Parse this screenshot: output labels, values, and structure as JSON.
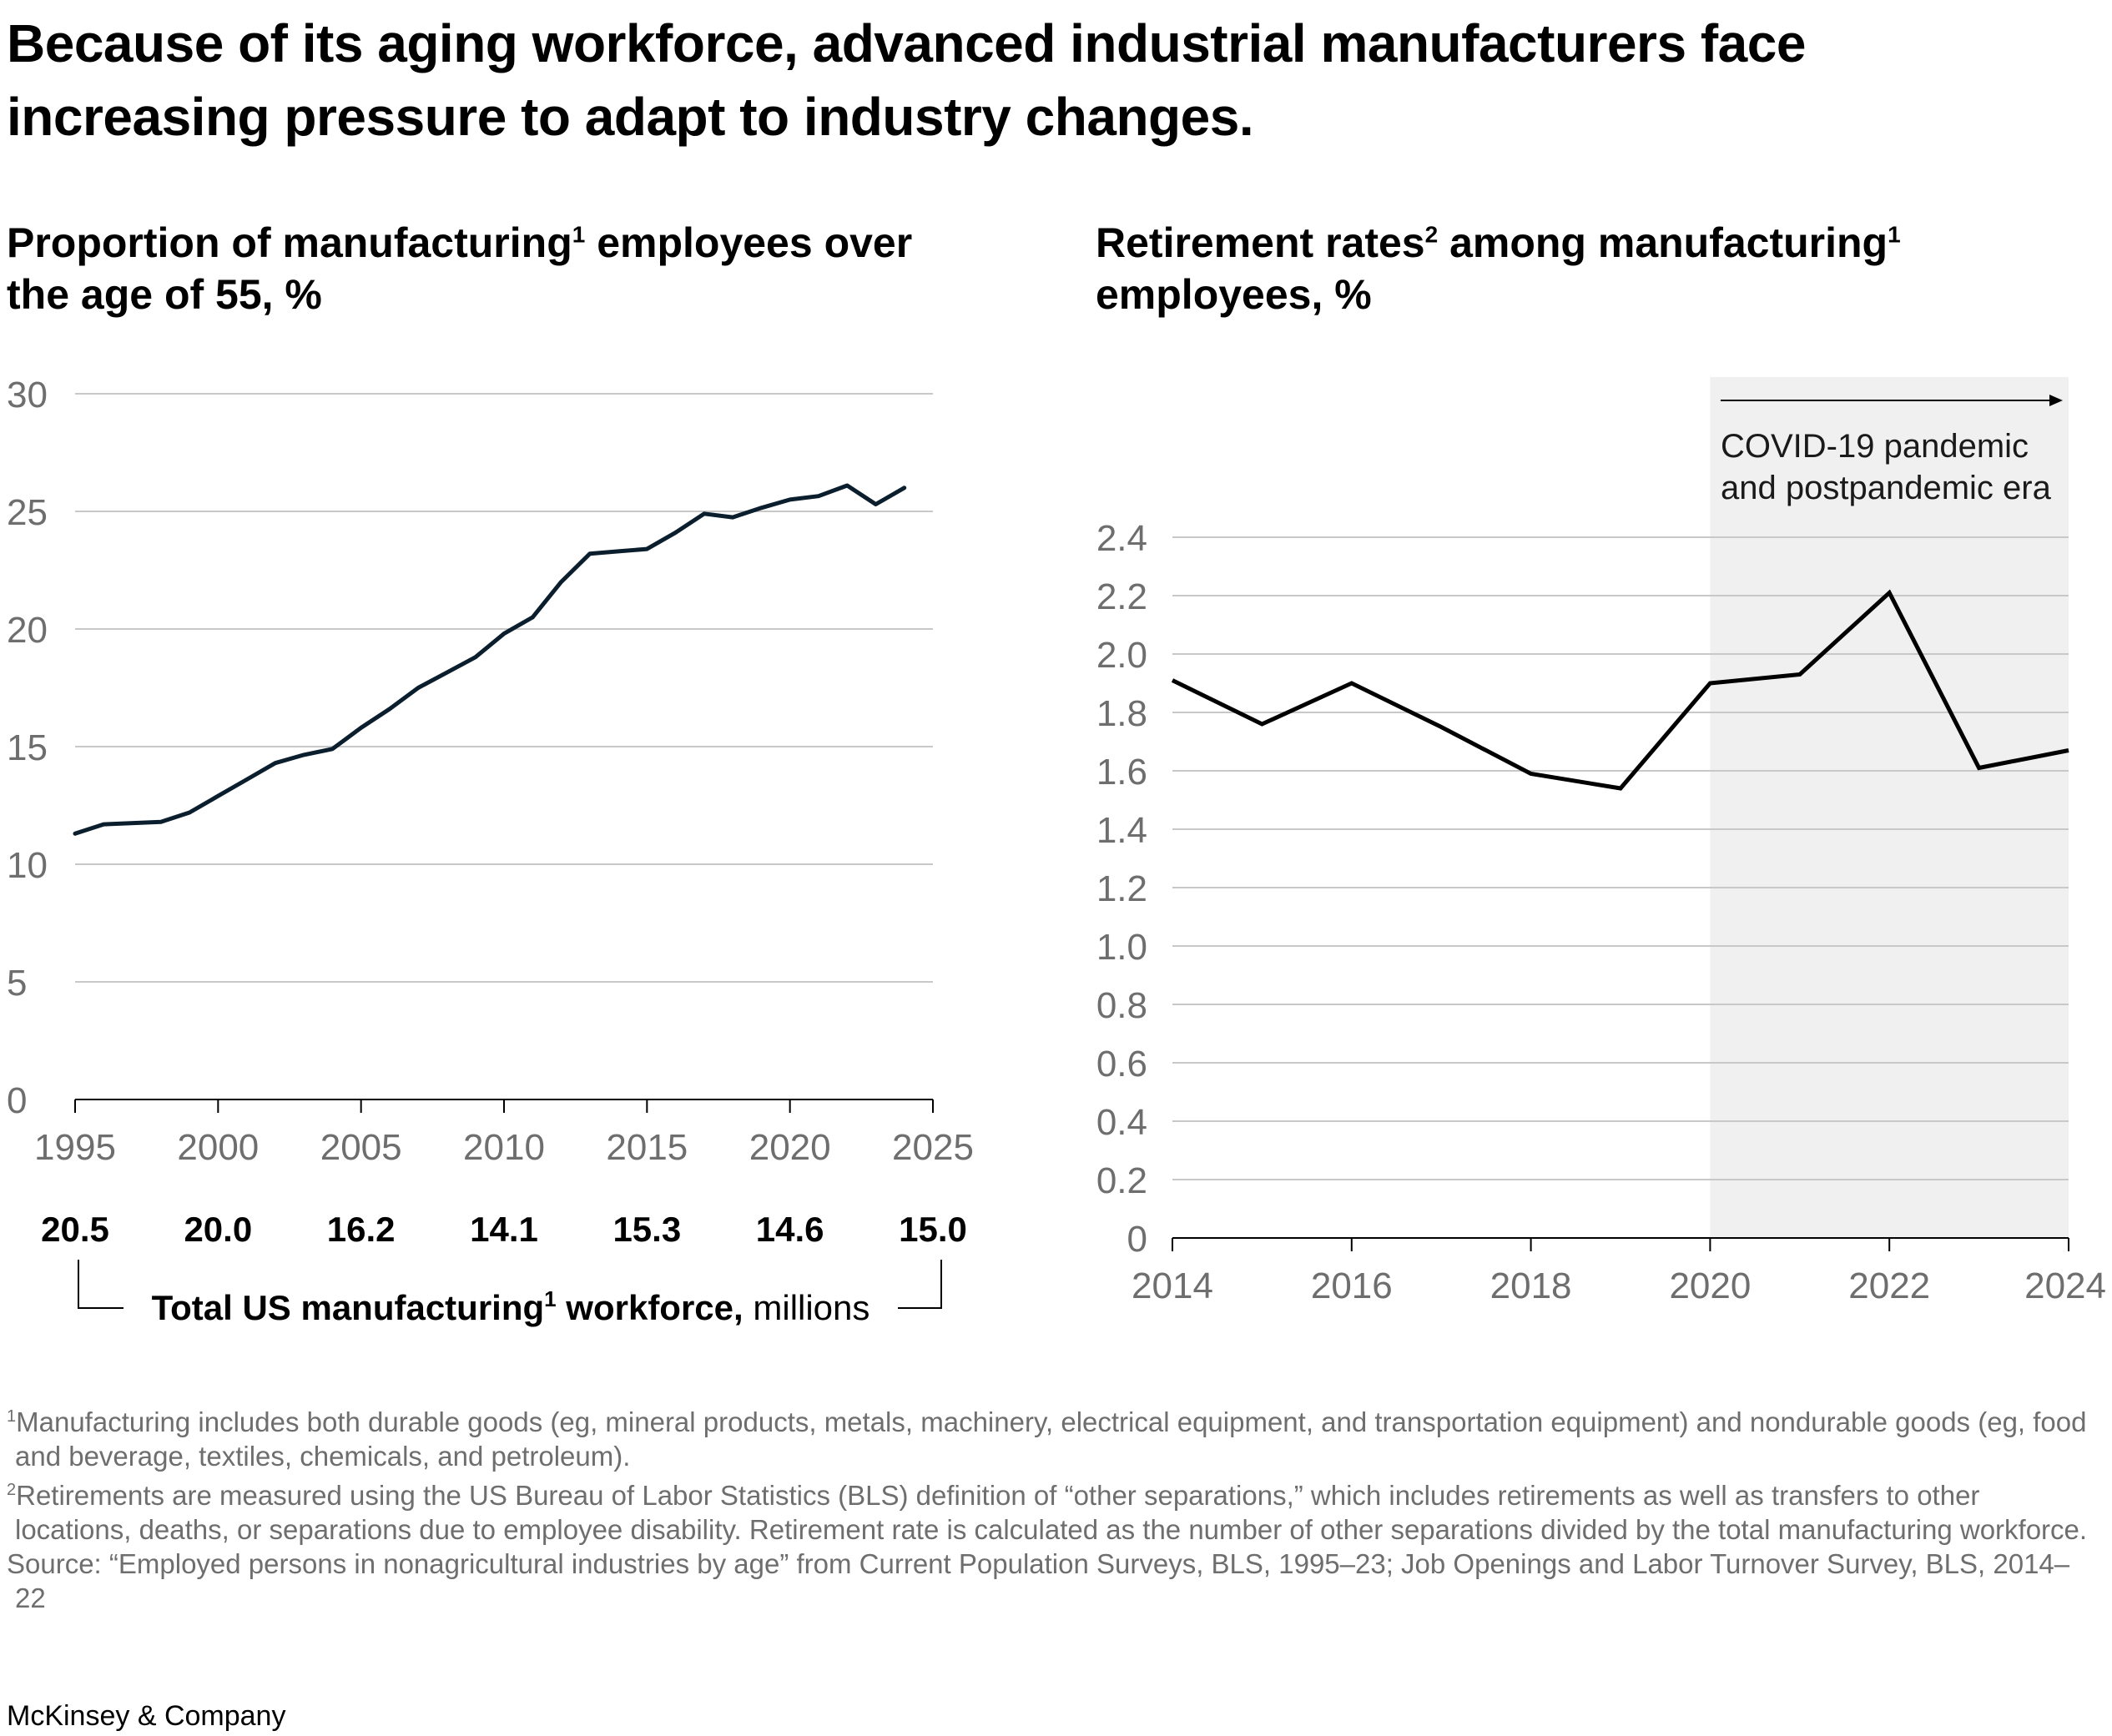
{
  "title": "Because of its aging workforce, advanced industrial manufacturers face increasing pressure to adapt to industry changes.",
  "left_subtitle": {
    "bold_part1": "Proportion of manufacturing",
    "sup": "1",
    "bold_part2": " employees over the age of 55,",
    "unit": " %"
  },
  "right_subtitle": {
    "bold_part1": "Retirement rates",
    "sup1": "2",
    "bold_part2": " among manufacturing",
    "sup2": "1",
    "bold_part3": " employees,",
    "unit": " %"
  },
  "workforce_label": {
    "bold": "Total US manufacturing",
    "sup": "1",
    "bold2": " workforce,",
    "unit": " millions"
  },
  "covid_annotation": [
    "COVID-19 pandemic",
    "and postpandemic era"
  ],
  "footnotes": {
    "fn1_sup": "1",
    "fn1": "Manufacturing includes both durable goods (eg, mineral products, metals, machinery, electrical equipment, and transportation equipment) and nondurable goods (eg, food and beverage, textiles, chemicals, and petroleum).",
    "fn2_sup": "2",
    "fn2": "Retirements are measured using the US Bureau of Labor Statistics (BLS) definition of “other separations,” which includes retirements as well as transfers to other locations, deaths, or separations due to employee disability. Retirement rate is calculated as the number of other separations divided by the total manufacturing workforce.",
    "source": "Source: “Employed persons in nonagricultural industries by age” from Current Population Surveys, BLS, 1995–23; Job Openings and Labor Turnover Survey, BLS, 2014–22"
  },
  "brand": "McKinsey & Company",
  "colors": {
    "line_left": "#0b1e2d",
    "line_right": "#000000",
    "gridline": "#c8c8c8",
    "tick_text": "#6e6e6e",
    "shade": "#f0f0f0"
  },
  "chart_data": [
    {
      "type": "line",
      "title": "Proportion of manufacturing employees over the age of 55, %",
      "x": [
        1995,
        1996,
        1998,
        1999,
        2000,
        2001,
        2002,
        2003,
        2004,
        2005,
        2006,
        2007,
        2008,
        2009,
        2010,
        2011,
        2012,
        2013,
        2014,
        2015,
        2016,
        2017,
        2018,
        2019,
        2020,
        2021,
        2022,
        2023,
        2024
      ],
      "values": [
        11.3,
        11.7,
        11.8,
        12.2,
        12.9,
        13.6,
        14.3,
        14.65,
        14.9,
        15.8,
        16.6,
        17.5,
        18.15,
        18.8,
        19.8,
        20.5,
        22.0,
        23.2,
        23.3,
        23.4,
        24.1,
        24.9,
        24.75,
        25.15,
        25.5,
        25.65,
        26.1,
        25.3,
        26.0
      ],
      "xlim": [
        1995,
        2025
      ],
      "ylim": [
        0,
        30
      ],
      "xticks": [
        "1995",
        "2000",
        "2005",
        "2010",
        "2015",
        "2020",
        "2025"
      ],
      "yticks": [
        "0",
        "5",
        "10",
        "15",
        "20",
        "25",
        "30"
      ],
      "xlabel": "",
      "ylabel": "",
      "workforce_values": [
        "20.5",
        "20.0",
        "16.2",
        "14.1",
        "15.3",
        "14.6",
        "15.0"
      ]
    },
    {
      "type": "line",
      "title": "Retirement rates among manufacturing employees, %",
      "x": [
        2014,
        2015,
        2016,
        2017,
        2018,
        2019,
        2020,
        2021,
        2022,
        2023,
        2024
      ],
      "values": [
        1.91,
        1.76,
        1.9,
        1.75,
        1.59,
        1.54,
        1.9,
        1.93,
        2.21,
        1.61,
        1.67
      ],
      "xlim": [
        2014,
        2024
      ],
      "ylim": [
        0,
        2.4
      ],
      "xticks": [
        "2014",
        "2016",
        "2018",
        "2020",
        "2022",
        "2024"
      ],
      "yticks": [
        "0",
        "0.2",
        "0.4",
        "0.6",
        "0.8",
        "1.0",
        "1.2",
        "1.4",
        "1.6",
        "1.8",
        "2.0",
        "2.2",
        "2.4"
      ],
      "shaded_region": [
        2020,
        2024
      ],
      "xlabel": "",
      "ylabel": ""
    }
  ]
}
